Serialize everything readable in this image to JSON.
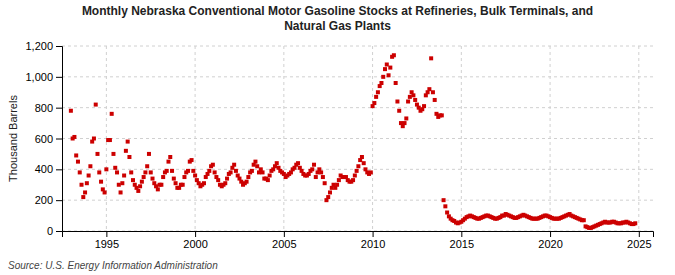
{
  "chart_data": {
    "type": "scatter",
    "title": "Monthly Nebraska Conventional Motor Gasoline Stocks at Refineries, Bulk Terminals, and\nNatural Gas Plants",
    "y_label": "Thousand Barrels",
    "annotations": [
      "Source: U.S. Energy Information Administration"
    ],
    "color": "#cc0000",
    "marker": "square",
    "grid": true,
    "xlim": [
      1992.5,
      2025.8
    ],
    "xticks": [
      1995,
      2000,
      2005,
      2010,
      2015,
      2020,
      2025
    ],
    "ylim": [
      0,
      1200
    ],
    "yticks": [
      0,
      200,
      400,
      600,
      800,
      {
        "value": 1000,
        "label": "1,000"
      },
      {
        "value": 1200,
        "label": "1,200"
      }
    ],
    "x": [
      1993.0,
      1993.1,
      1993.2,
      1993.3,
      1993.4,
      1993.5,
      1993.6,
      1993.7,
      1993.8,
      1993.9,
      1994.0,
      1994.1,
      1994.2,
      1994.3,
      1994.4,
      1994.5,
      1994.6,
      1994.7,
      1994.8,
      1994.9,
      1995.0,
      1995.1,
      1995.2,
      1995.3,
      1995.4,
      1995.5,
      1995.6,
      1995.7,
      1995.8,
      1995.9,
      1996.0,
      1996.1,
      1996.2,
      1996.3,
      1996.4,
      1996.5,
      1996.6,
      1996.7,
      1996.8,
      1996.9,
      1997.0,
      1997.1,
      1997.2,
      1997.3,
      1997.4,
      1997.5,
      1997.6,
      1997.7,
      1997.8,
      1997.9,
      1998.0,
      1998.1,
      1998.2,
      1998.3,
      1998.4,
      1998.5,
      1998.6,
      1998.7,
      1998.8,
      1998.9,
      1999.0,
      1999.1,
      1999.2,
      1999.3,
      1999.4,
      1999.5,
      1999.6,
      1999.7,
      1999.8,
      1999.9,
      2000.0,
      2000.1,
      2000.2,
      2000.3,
      2000.4,
      2000.5,
      2000.6,
      2000.7,
      2000.8,
      2000.9,
      2001.0,
      2001.1,
      2001.2,
      2001.3,
      2001.4,
      2001.5,
      2001.6,
      2001.7,
      2001.8,
      2001.9,
      2002.0,
      2002.1,
      2002.2,
      2002.3,
      2002.4,
      2002.5,
      2002.6,
      2002.7,
      2002.8,
      2002.9,
      2003.0,
      2003.1,
      2003.2,
      2003.3,
      2003.4,
      2003.5,
      2003.6,
      2003.7,
      2003.8,
      2003.9,
      2004.0,
      2004.1,
      2004.2,
      2004.3,
      2004.4,
      2004.5,
      2004.6,
      2004.7,
      2004.8,
      2004.9,
      2005.0,
      2005.1,
      2005.2,
      2005.3,
      2005.4,
      2005.5,
      2005.6,
      2005.7,
      2005.8,
      2005.9,
      2006.0,
      2006.1,
      2006.2,
      2006.3,
      2006.4,
      2006.5,
      2006.6,
      2006.7,
      2006.8,
      2006.9,
      2007.0,
      2007.1,
      2007.2,
      2007.3,
      2007.4,
      2007.5,
      2007.6,
      2007.7,
      2007.8,
      2007.9,
      2008.0,
      2008.1,
      2008.2,
      2008.3,
      2008.4,
      2008.5,
      2008.6,
      2008.7,
      2008.8,
      2008.9,
      2009.0,
      2009.1,
      2009.2,
      2009.3,
      2009.4,
      2009.5,
      2009.6,
      2009.7,
      2009.8,
      2009.9,
      2010.0,
      2010.1,
      2010.2,
      2010.3,
      2010.4,
      2010.5,
      2010.6,
      2010.7,
      2010.8,
      2010.9,
      2011.0,
      2011.1,
      2011.2,
      2011.3,
      2011.4,
      2011.5,
      2011.6,
      2011.7,
      2011.8,
      2011.9,
      2012.0,
      2012.1,
      2012.2,
      2012.3,
      2012.4,
      2012.5,
      2012.6,
      2012.7,
      2012.8,
      2012.9,
      2013.0,
      2013.1,
      2013.2,
      2013.3,
      2013.4,
      2013.5,
      2013.6,
      2013.7,
      2013.8,
      2013.9,
      2014.0,
      2014.1,
      2014.2,
      2014.3,
      2014.4,
      2014.5,
      2014.6,
      2014.7,
      2014.8,
      2014.9,
      2015.0,
      2015.1,
      2015.2,
      2015.3,
      2015.4,
      2015.5,
      2015.6,
      2015.7,
      2015.8,
      2015.9,
      2016.0,
      2016.1,
      2016.2,
      2016.3,
      2016.4,
      2016.5,
      2016.6,
      2016.7,
      2016.8,
      2016.9,
      2017.0,
      2017.1,
      2017.2,
      2017.3,
      2017.4,
      2017.5,
      2017.6,
      2017.7,
      2017.8,
      2017.9,
      2018.0,
      2018.1,
      2018.2,
      2018.3,
      2018.4,
      2018.5,
      2018.6,
      2018.7,
      2018.8,
      2018.9,
      2019.0,
      2019.1,
      2019.2,
      2019.3,
      2019.4,
      2019.5,
      2019.6,
      2019.7,
      2019.8,
      2019.9,
      2020.0,
      2020.1,
      2020.2,
      2020.3,
      2020.4,
      2020.5,
      2020.6,
      2020.7,
      2020.8,
      2020.9,
      2021.0,
      2021.1,
      2021.2,
      2021.3,
      2021.4,
      2021.5,
      2021.6,
      2021.7,
      2021.8,
      2021.9,
      2022.0,
      2022.1,
      2022.2,
      2022.3,
      2022.4,
      2022.5,
      2022.6,
      2022.7,
      2022.8,
      2022.9,
      2023.0,
      2023.1,
      2023.2,
      2023.3,
      2023.4,
      2023.5,
      2023.6,
      2023.7,
      2023.8,
      2023.9,
      2024.0,
      2024.1,
      2024.2,
      2024.3,
      2024.4,
      2024.5,
      2024.6,
      2024.7,
      2024.8
    ],
    "values": [
      780,
      600,
      610,
      490,
      450,
      380,
      300,
      220,
      250,
      310,
      360,
      420,
      580,
      600,
      820,
      500,
      380,
      320,
      270,
      250,
      400,
      590,
      590,
      760,
      500,
      410,
      380,
      300,
      250,
      310,
      360,
      520,
      580,
      480,
      380,
      330,
      300,
      280,
      260,
      290,
      320,
      350,
      380,
      420,
      500,
      380,
      340,
      310,
      290,
      270,
      300,
      300,
      350,
      380,
      390,
      450,
      480,
      390,
      340,
      310,
      280,
      280,
      300,
      300,
      350,
      380,
      390,
      450,
      460,
      390,
      360,
      330,
      310,
      290,
      300,
      310,
      350,
      370,
      390,
      420,
      430,
      380,
      350,
      330,
      300,
      290,
      300,
      310,
      340,
      370,
      380,
      410,
      430,
      390,
      360,
      340,
      320,
      300,
      310,
      320,
      350,
      380,
      390,
      430,
      450,
      420,
      380,
      400,
      380,
      340,
      340,
      330,
      360,
      390,
      400,
      420,
      440,
      410,
      390,
      380,
      370,
      350,
      360,
      370,
      380,
      400,
      410,
      430,
      440,
      410,
      390,
      370,
      360,
      360,
      370,
      390,
      400,
      430,
      350,
      380,
      400,
      380,
      350,
      310,
      200,
      220,
      250,
      280,
      300,
      280,
      300,
      330,
      360,
      350,
      350,
      350,
      330,
      320,
      320,
      330,
      360,
      390,
      420,
      460,
      480,
      440,
      400,
      380,
      370,
      380,
      810,
      830,
      870,
      900,
      940,
      960,
      1000,
      1050,
      1080,
      1010,
      1060,
      1130,
      1140,
      960,
      840,
      780,
      700,
      680,
      700,
      730,
      840,
      870,
      900,
      880,
      850,
      820,
      800,
      780,
      790,
      810,
      880,
      900,
      920,
      1120,
      900,
      850,
      760,
      740,
      750,
      750,
      200,
      160,
      120,
      95,
      80,
      70,
      65,
      55,
      50,
      55,
      60,
      70,
      80,
      90,
      95,
      100,
      95,
      90,
      85,
      80,
      80,
      85,
      90,
      95,
      100,
      100,
      95,
      90,
      85,
      80,
      80,
      85,
      90,
      100,
      100,
      110,
      105,
      100,
      95,
      90,
      85,
      85,
      90,
      95,
      100,
      105,
      100,
      95,
      90,
      85,
      80,
      80,
      80,
      80,
      85,
      90,
      95,
      100,
      100,
      95,
      90,
      85,
      80,
      80,
      80,
      80,
      85,
      90,
      95,
      100,
      105,
      110,
      100,
      95,
      90,
      85,
      80,
      75,
      70,
      70,
      30,
      25,
      20,
      20,
      25,
      30,
      35,
      40,
      45,
      50,
      55,
      60,
      55,
      55,
      55,
      60,
      60,
      55,
      50,
      50,
      50,
      55,
      55,
      60,
      55,
      50,
      45,
      45,
      50
    ]
  }
}
